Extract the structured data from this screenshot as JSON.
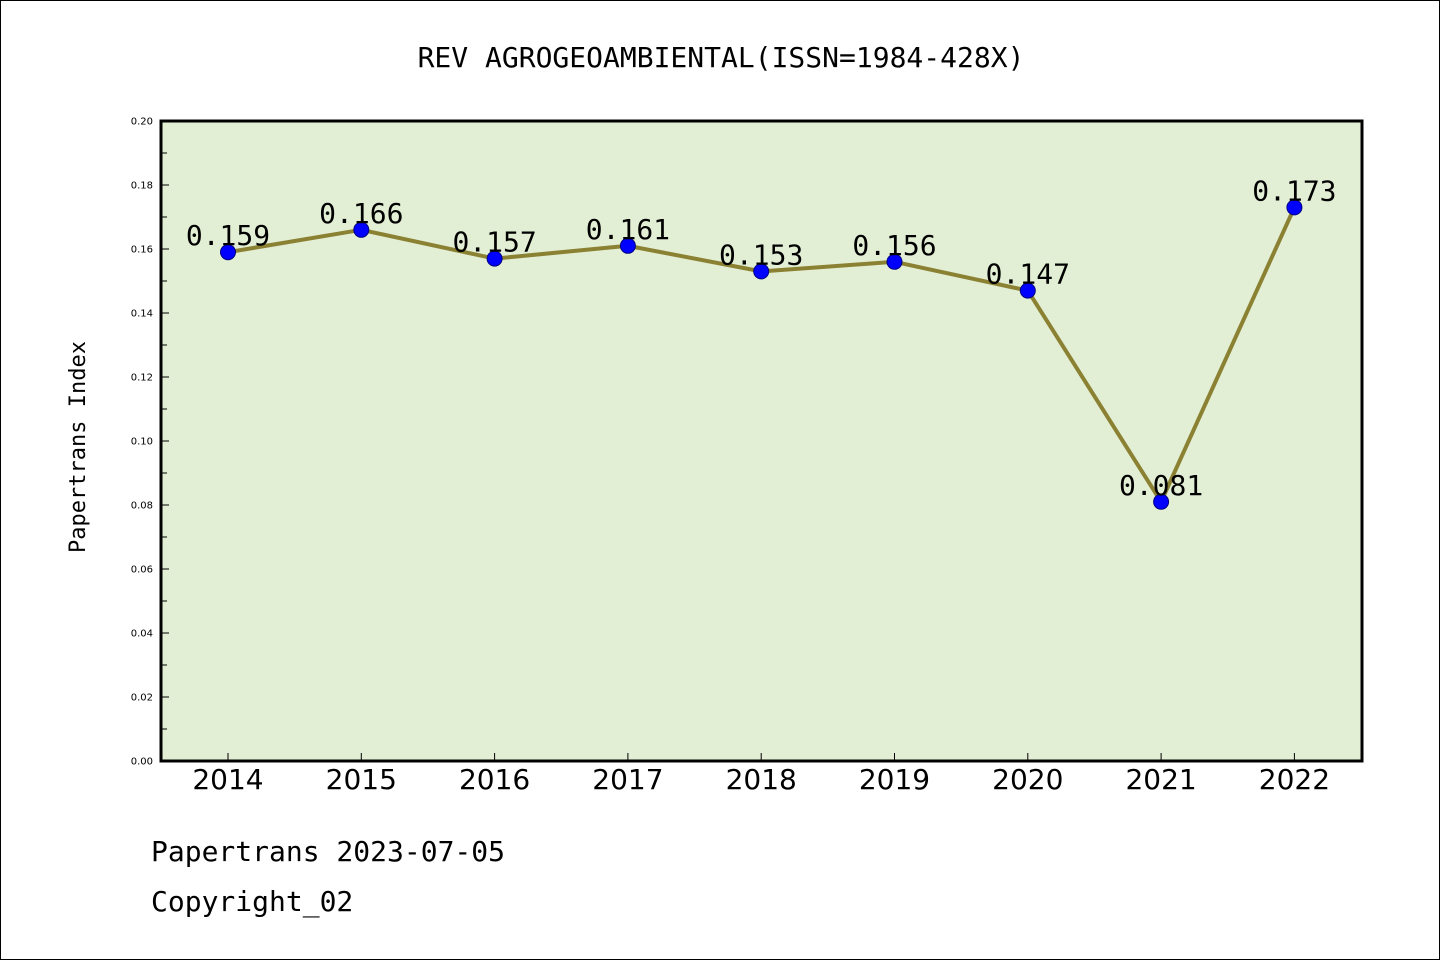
{
  "chart_data": {
    "type": "line",
    "title": "REV AGROGEOAMBIENTAL(ISSN=1984-428X)",
    "xlabel": "",
    "ylabel": "Papertrans Index",
    "categories": [
      "2014",
      "2015",
      "2016",
      "2017",
      "2018",
      "2019",
      "2020",
      "2021",
      "2022"
    ],
    "series": [
      {
        "values": [
          0.159,
          0.166,
          0.157,
          0.161,
          0.153,
          0.156,
          0.147,
          0.081,
          0.173
        ],
        "labels": [
          "0.159",
          "0.166",
          "0.157",
          "0.161",
          "0.153",
          "0.156",
          "0.147",
          "0.081",
          "0.173"
        ]
      }
    ],
    "ylim": [
      0,
      0.2
    ],
    "yticks": [
      "0.00",
      "0.02",
      "0.04",
      "0.06",
      "0.08",
      "0.10",
      "0.12",
      "0.14",
      "0.16",
      "0.18",
      "0.20"
    ],
    "grid": false,
    "colors": {
      "plot_background": "#e2efd4",
      "line": "#8b8132",
      "marker_fill": "#0000ff",
      "marker_edge": "#000080"
    }
  },
  "footer": {
    "line1": "Papertrans 2023-07-05",
    "line2": "Copyright_02"
  }
}
